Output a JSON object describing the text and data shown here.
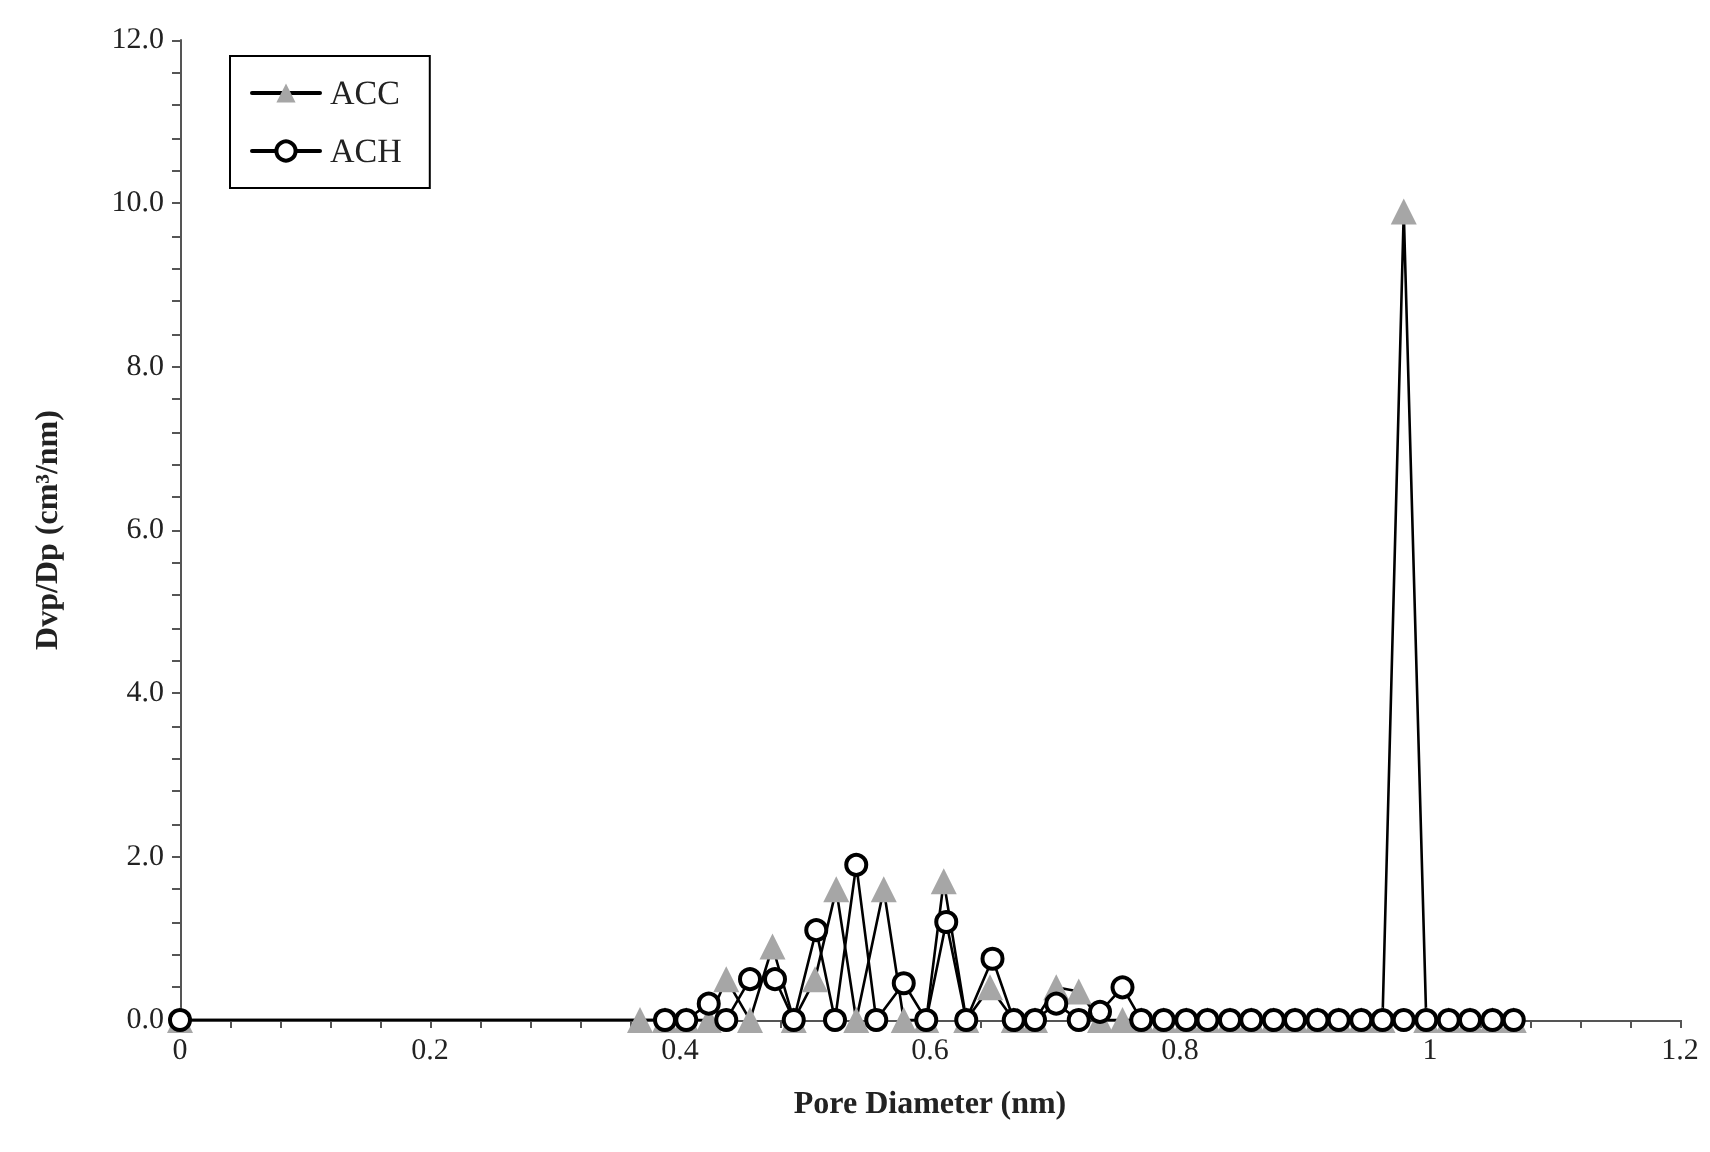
{
  "chart_data": {
    "type": "line",
    "xlabel": "Pore Diameter (nm)",
    "ylabel": "Dvp/Dp (cm³/nm)",
    "xlim": [
      0,
      1.2
    ],
    "ylim": [
      0,
      12
    ],
    "xticks": [
      0,
      {
        "value": 0.04,
        "label": null
      },
      {
        "value": 0.08,
        "label": null
      },
      {
        "value": 0.12,
        "label": null
      },
      {
        "value": 0.16,
        "label": null
      },
      0.2,
      {
        "value": 0.24,
        "label": null
      },
      {
        "value": 0.28,
        "label": null
      },
      {
        "value": 0.32,
        "label": null
      },
      {
        "value": 0.36,
        "label": null
      },
      0.4,
      {
        "value": 0.44,
        "label": null
      },
      {
        "value": 0.48,
        "label": null
      },
      {
        "value": 0.52,
        "label": null
      },
      {
        "value": 0.56,
        "label": null
      },
      0.6,
      {
        "value": 0.64,
        "label": null
      },
      {
        "value": 0.68,
        "label": null
      },
      {
        "value": 0.72,
        "label": null
      },
      {
        "value": 0.76,
        "label": null
      },
      0.8,
      {
        "value": 0.84,
        "label": null
      },
      {
        "value": 0.88,
        "label": null
      },
      {
        "value": 0.92,
        "label": null
      },
      {
        "value": 0.96,
        "label": null
      },
      1,
      {
        "value": 1.04,
        "label": null
      },
      {
        "value": 1.08,
        "label": null
      },
      {
        "value": 1.12,
        "label": null
      },
      {
        "value": 1.16,
        "label": null
      },
      1.2
    ],
    "yticks": [
      {
        "value": 0,
        "label": "0.0"
      },
      {
        "value": 0.4,
        "label": null
      },
      {
        "value": 0.8,
        "label": null
      },
      {
        "value": 1.2,
        "label": null
      },
      {
        "value": 1.6,
        "label": null
      },
      {
        "value": 2,
        "label": "2.0"
      },
      {
        "value": 2.4,
        "label": null
      },
      {
        "value": 2.8,
        "label": null
      },
      {
        "value": 3.2,
        "label": null
      },
      {
        "value": 3.6,
        "label": null
      },
      {
        "value": 4,
        "label": "4.0"
      },
      {
        "value": 4.4,
        "label": null
      },
      {
        "value": 4.8,
        "label": null
      },
      {
        "value": 5.2,
        "label": null
      },
      {
        "value": 5.6,
        "label": null
      },
      {
        "value": 6,
        "label": "6.0"
      },
      {
        "value": 6.4,
        "label": null
      },
      {
        "value": 6.8,
        "label": null
      },
      {
        "value": 7.2,
        "label": null
      },
      {
        "value": 7.6,
        "label": null
      },
      {
        "value": 8,
        "label": "8.0"
      },
      {
        "value": 8.4,
        "label": null
      },
      {
        "value": 8.8,
        "label": null
      },
      {
        "value": 9.2,
        "label": null
      },
      {
        "value": 9.6,
        "label": null
      },
      {
        "value": 10,
        "label": "10.0"
      },
      {
        "value": 10.4,
        "label": null
      },
      {
        "value": 10.8,
        "label": null
      },
      {
        "value": 11.2,
        "label": null
      },
      {
        "value": 11.6,
        "label": null
      },
      {
        "value": 12,
        "label": "12.0"
      }
    ],
    "grid": false,
    "legend": "top left",
    "line_style": "solid",
    "series": [
      {
        "name": "ACC",
        "color": "#a6a6a6",
        "marker": "triangle",
        "x": [
          0,
          0.368,
          0.388,
          0.405,
          0.423,
          0.437,
          0.456,
          0.474,
          0.491,
          0.508,
          0.525,
          0.541,
          0.563,
          0.579,
          0.597,
          0.611,
          0.629,
          0.648,
          0.667,
          0.684,
          0.701,
          0.719,
          0.736,
          0.754,
          0.769,
          0.787,
          0.805,
          0.822,
          0.84,
          0.857,
          0.875,
          0.892,
          0.91,
          0.927,
          0.945,
          0.962,
          0.979,
          0.997,
          1.015,
          1.032,
          1.05,
          1.067
        ],
        "values": [
          0,
          0,
          0,
          0,
          0,
          0.5,
          0,
          0.9,
          0,
          0.5,
          1.6,
          0,
          1.6,
          0,
          0,
          1.7,
          0,
          0.4,
          0,
          0,
          0.4,
          0.35,
          0,
          0,
          0,
          0,
          0,
          0,
          0,
          0,
          0,
          0,
          0,
          0,
          0,
          0,
          9.9,
          0,
          0,
          0,
          0,
          0
        ]
      },
      {
        "name": "ACH",
        "color": "#000000",
        "marker": "circle",
        "x": [
          0,
          0.388,
          0.405,
          0.423,
          0.437,
          0.456,
          0.476,
          0.491,
          0.509,
          0.524,
          0.541,
          0.557,
          0.579,
          0.597,
          0.613,
          0.629,
          0.65,
          0.667,
          0.684,
          0.701,
          0.719,
          0.736,
          0.754,
          0.769,
          0.787,
          0.805,
          0.822,
          0.84,
          0.857,
          0.875,
          0.892,
          0.91,
          0.927,
          0.945,
          0.962,
          0.979,
          0.997,
          1.015,
          1.032,
          1.05,
          1.067
        ],
        "values": [
          0,
          0,
          0,
          0.2,
          0,
          0.5,
          0.5,
          0,
          1.1,
          0,
          1.9,
          0,
          0.45,
          0,
          1.2,
          0,
          0.75,
          0,
          0,
          0.2,
          0,
          0.1,
          0.4,
          0,
          0,
          0,
          0,
          0,
          0,
          0,
          0,
          0,
          0,
          0,
          0,
          0,
          0,
          0,
          0,
          0,
          0
        ]
      }
    ]
  }
}
